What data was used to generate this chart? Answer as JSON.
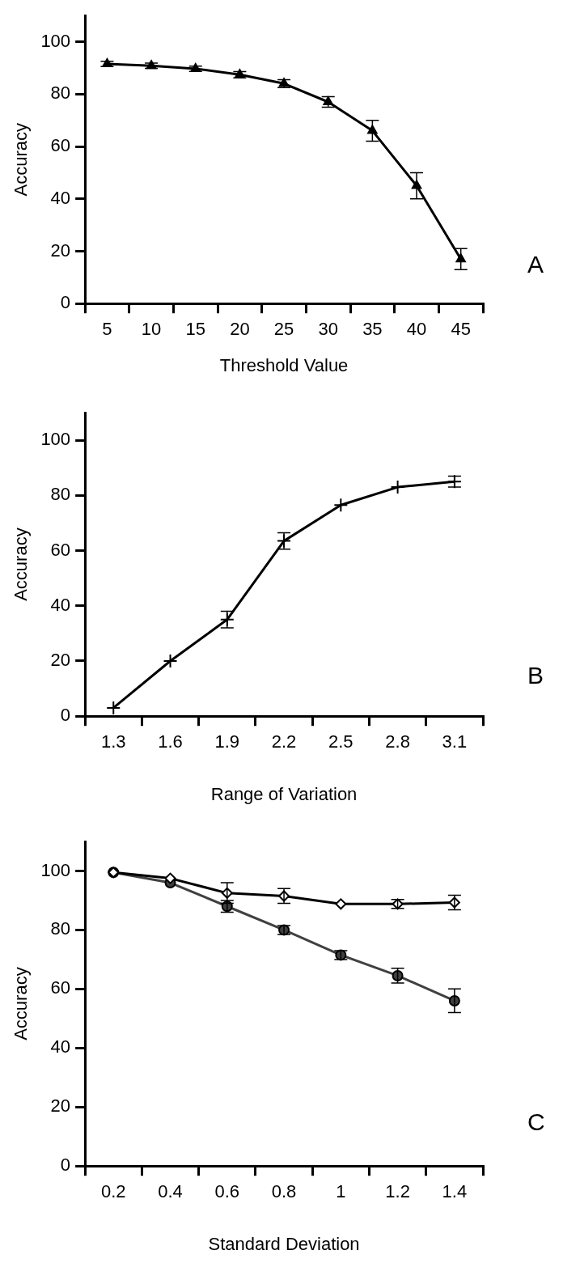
{
  "chart_data": [
    {
      "type": "line",
      "xlabel": "Threshold Value",
      "ylabel": "Accuracy",
      "annotations": [
        "A"
      ],
      "grid": false,
      "categories": [
        "5",
        "10",
        "15",
        "20",
        "25",
        "30",
        "35",
        "40",
        "45"
      ],
      "ylim": [
        0,
        110
      ],
      "yticks": [
        0,
        20,
        40,
        60,
        80,
        100
      ],
      "series": [
        {
          "color": "#000000",
          "marker": "triangle",
          "values": [
            91.5,
            90.8,
            89.7,
            87.4,
            84,
            77,
            66,
            45,
            17
          ],
          "errors": [
            1,
            1,
            1,
            1.2,
            1.5,
            2,
            4,
            5,
            4
          ]
        }
      ]
    },
    {
      "type": "line",
      "xlabel": "Range of Variation",
      "ylabel": "Accuracy",
      "annotations": [
        "B"
      ],
      "grid": false,
      "categories": [
        "1.3",
        "1.6",
        "1.9",
        "2.2",
        "2.5",
        "2.8",
        "3.1"
      ],
      "ylim": [
        0,
        110
      ],
      "yticks": [
        0,
        20,
        40,
        60,
        80,
        100
      ],
      "series": [
        {
          "color": "#000000",
          "marker": "cross",
          "values": [
            3,
            20,
            35,
            63.5,
            76.5,
            83,
            85
          ],
          "errors": [
            null,
            null,
            3,
            3,
            null,
            null,
            2
          ]
        }
      ]
    },
    {
      "type": "line",
      "xlabel": "Standard Deviation",
      "ylabel": "Accuracy",
      "annotations": [
        "C"
      ],
      "grid": false,
      "categories": [
        "0.2",
        "0.4",
        "0.6",
        "0.8",
        "1",
        "1.2",
        "1.4"
      ],
      "ylim": [
        0,
        110
      ],
      "yticks": [
        0,
        20,
        40,
        60,
        80,
        100
      ],
      "series": [
        {
          "color": "#404040",
          "marker": "circle",
          "values": [
            99.5,
            96,
            88,
            80,
            71.5,
            64.5,
            56
          ],
          "errors": [
            null,
            null,
            2,
            1.5,
            1.5,
            2.5,
            4
          ]
        },
        {
          "color": "#000000",
          "marker": "diamond",
          "values": [
            99.5,
            97.5,
            92.5,
            91.5,
            88.8,
            88.8,
            89.3
          ],
          "errors": [
            null,
            null,
            3.5,
            2.5,
            null,
            1.5,
            2.5
          ]
        }
      ]
    }
  ]
}
